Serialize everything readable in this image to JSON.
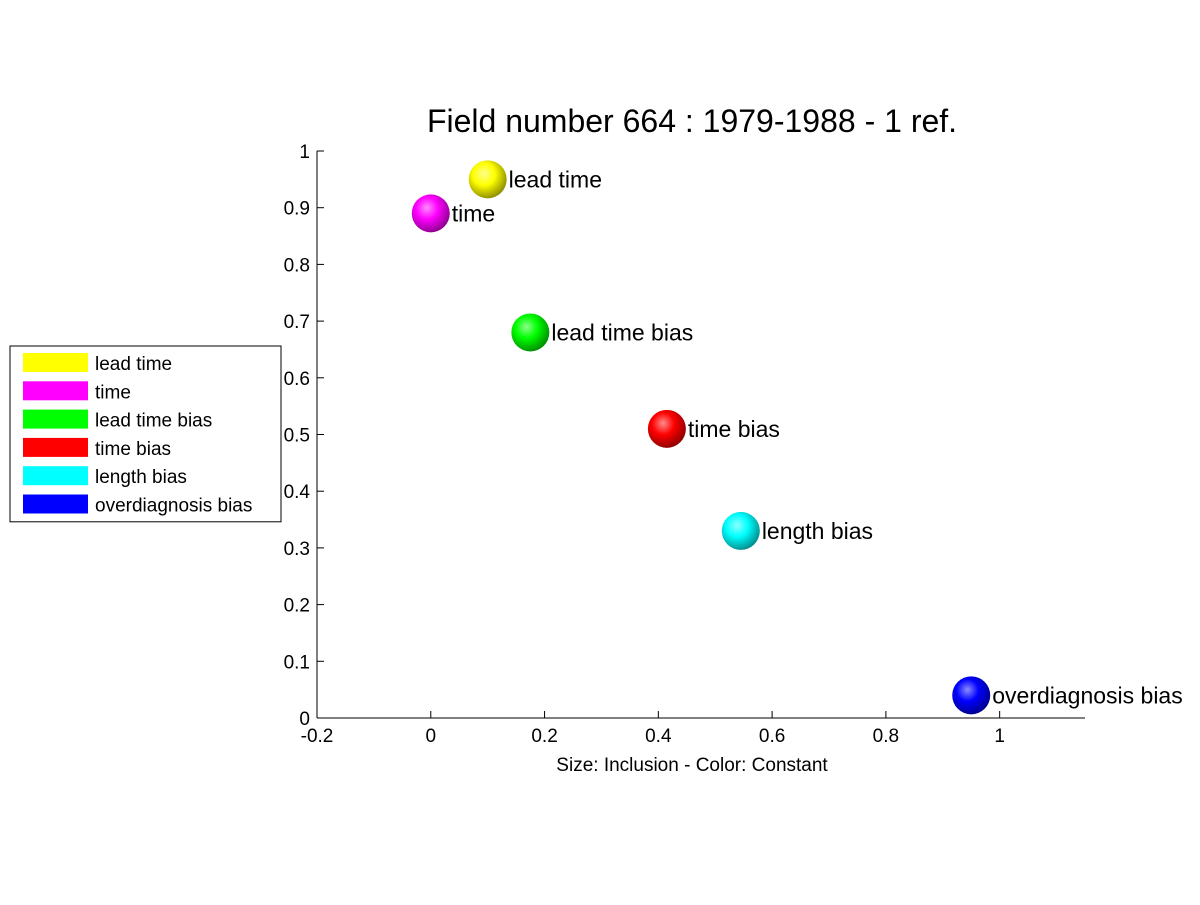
{
  "chart_data": {
    "type": "scatter",
    "title": "Field number 664 : 1979-1988  - 1 ref.",
    "xlabel": "Size: Inclusion - Color: Constant",
    "ylabel": "",
    "xlim": [
      -0.2,
      1.15
    ],
    "ylim": [
      0,
      1
    ],
    "xticks": [
      -0.2,
      0,
      0.2,
      0.4,
      0.6,
      0.8,
      1
    ],
    "xtick_labels": [
      "-0.2",
      "0",
      "0.2",
      "0.4",
      "0.6",
      "0.8",
      "1"
    ],
    "yticks": [
      0,
      0.1,
      0.2,
      0.3,
      0.4,
      0.5,
      0.6,
      0.7,
      0.8,
      0.9,
      1
    ],
    "ytick_labels": [
      "0",
      "0.1",
      "0.2",
      "0.3",
      "0.4",
      "0.5",
      "0.6",
      "0.7",
      "0.8",
      "0.9",
      "1"
    ],
    "grid": false,
    "legend_position": "outside-left",
    "points": [
      {
        "label": "lead time",
        "x": 0.1,
        "y": 0.95,
        "color": "#ffff00"
      },
      {
        "label": "time",
        "x": 0.0,
        "y": 0.89,
        "color": "#ff00ff"
      },
      {
        "label": "lead time bias",
        "x": 0.175,
        "y": 0.68,
        "color": "#00ff00"
      },
      {
        "label": "time bias",
        "x": 0.415,
        "y": 0.51,
        "color": "#ff0000"
      },
      {
        "label": "length bias",
        "x": 0.545,
        "y": 0.33,
        "color": "#00ffff"
      },
      {
        "label": "overdiagnosis bias",
        "x": 0.95,
        "y": 0.04,
        "color": "#0000ff"
      }
    ]
  }
}
